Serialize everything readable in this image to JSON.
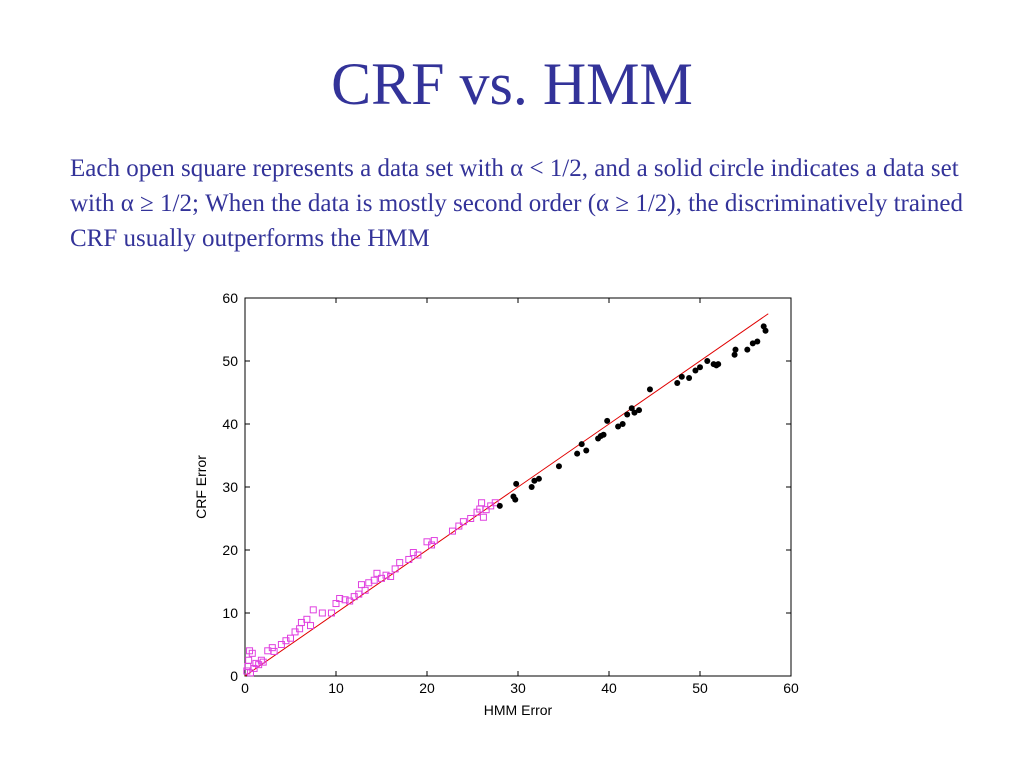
{
  "slide": {
    "title": "CRF vs. HMM",
    "body": "Each open square represents a data set with α < 1/2, and a solid circle indicates a data set with α ≥ 1/2; When the data is mostly second order (α ≥ 1/2), the discriminatively trained CRF usually outperforms the HMM"
  },
  "chart_data": {
    "type": "scatter",
    "xlabel": "HMM Error",
    "ylabel": "CRF Error",
    "xlim": [
      0,
      60
    ],
    "ylim": [
      0,
      60
    ],
    "x_ticks": [
      0,
      10,
      20,
      30,
      40,
      50,
      60
    ],
    "y_ticks": [
      0,
      10,
      20,
      30,
      40,
      50,
      60
    ],
    "grid": false,
    "legend": "none",
    "reference_line": {
      "from": [
        0,
        0
      ],
      "to": [
        57.5,
        57.5
      ],
      "color": "#e00000"
    },
    "series": [
      {
        "marker": "open-square",
        "color": "#e040e0",
        "points": [
          [
            0.2,
            0.8
          ],
          [
            0.3,
            1.5
          ],
          [
            0.4,
            2.5
          ],
          [
            0.5,
            4.0
          ],
          [
            0.6,
            0.5
          ],
          [
            0.8,
            3.6
          ],
          [
            1.0,
            1.2
          ],
          [
            1.2,
            2.0
          ],
          [
            1.5,
            1.8
          ],
          [
            1.8,
            2.5
          ],
          [
            2.0,
            2.2
          ],
          [
            2.5,
            4.0
          ],
          [
            3.0,
            4.5
          ],
          [
            3.2,
            3.9
          ],
          [
            4.0,
            5.0
          ],
          [
            4.5,
            5.6
          ],
          [
            5.0,
            6.0
          ],
          [
            5.5,
            7.0
          ],
          [
            6.0,
            7.5
          ],
          [
            6.2,
            8.5
          ],
          [
            6.8,
            9.0
          ],
          [
            7.2,
            8.0
          ],
          [
            7.5,
            10.5
          ],
          [
            8.5,
            10.0
          ],
          [
            9.5,
            10.0
          ],
          [
            10.0,
            11.5
          ],
          [
            10.4,
            12.3
          ],
          [
            11.0,
            12.1
          ],
          [
            11.5,
            11.9
          ],
          [
            12.0,
            12.6
          ],
          [
            12.5,
            13.0
          ],
          [
            12.8,
            14.5
          ],
          [
            13.2,
            13.6
          ],
          [
            13.6,
            14.8
          ],
          [
            14.2,
            15.2
          ],
          [
            14.5,
            16.3
          ],
          [
            15.0,
            15.5
          ],
          [
            15.5,
            16.0
          ],
          [
            16.0,
            15.8
          ],
          [
            16.5,
            17.0
          ],
          [
            17.0,
            18.0
          ],
          [
            18.0,
            18.5
          ],
          [
            18.5,
            19.6
          ],
          [
            19.0,
            19.2
          ],
          [
            20.0,
            21.3
          ],
          [
            20.5,
            20.8
          ],
          [
            20.8,
            21.5
          ],
          [
            22.8,
            23.0
          ],
          [
            23.5,
            23.8
          ],
          [
            24.0,
            24.5
          ],
          [
            24.8,
            25.0
          ],
          [
            25.5,
            26.0
          ],
          [
            25.8,
            26.5
          ],
          [
            26.0,
            27.5
          ],
          [
            26.2,
            25.2
          ],
          [
            26.5,
            26.4
          ],
          [
            27.0,
            27.0
          ],
          [
            27.5,
            27.5
          ]
        ]
      },
      {
        "marker": "solid-circle",
        "color": "#000000",
        "points": [
          [
            28.0,
            27.0
          ],
          [
            29.5,
            28.5
          ],
          [
            29.7,
            28.0
          ],
          [
            29.8,
            30.5
          ],
          [
            31.5,
            30.0
          ],
          [
            31.8,
            31.0
          ],
          [
            32.3,
            31.3
          ],
          [
            34.5,
            33.3
          ],
          [
            36.5,
            35.3
          ],
          [
            37.0,
            36.8
          ],
          [
            37.5,
            35.8
          ],
          [
            38.8,
            37.7
          ],
          [
            39.1,
            38.1
          ],
          [
            39.4,
            38.3
          ],
          [
            39.8,
            40.5
          ],
          [
            41.0,
            39.6
          ],
          [
            41.5,
            40.0
          ],
          [
            42.0,
            41.5
          ],
          [
            42.5,
            42.5
          ],
          [
            42.8,
            41.8
          ],
          [
            43.3,
            42.2
          ],
          [
            44.5,
            45.5
          ],
          [
            47.5,
            46.5
          ],
          [
            48.0,
            47.5
          ],
          [
            48.8,
            47.3
          ],
          [
            49.5,
            48.5
          ],
          [
            50.0,
            49.0
          ],
          [
            50.8,
            50.0
          ],
          [
            51.5,
            49.5
          ],
          [
            51.8,
            49.3
          ],
          [
            52.0,
            49.5
          ],
          [
            53.8,
            51.0
          ],
          [
            53.9,
            51.8
          ],
          [
            55.2,
            51.8
          ],
          [
            55.8,
            52.8
          ],
          [
            56.3,
            53.1
          ],
          [
            57.0,
            55.5
          ],
          [
            57.2,
            54.8
          ]
        ]
      }
    ]
  }
}
